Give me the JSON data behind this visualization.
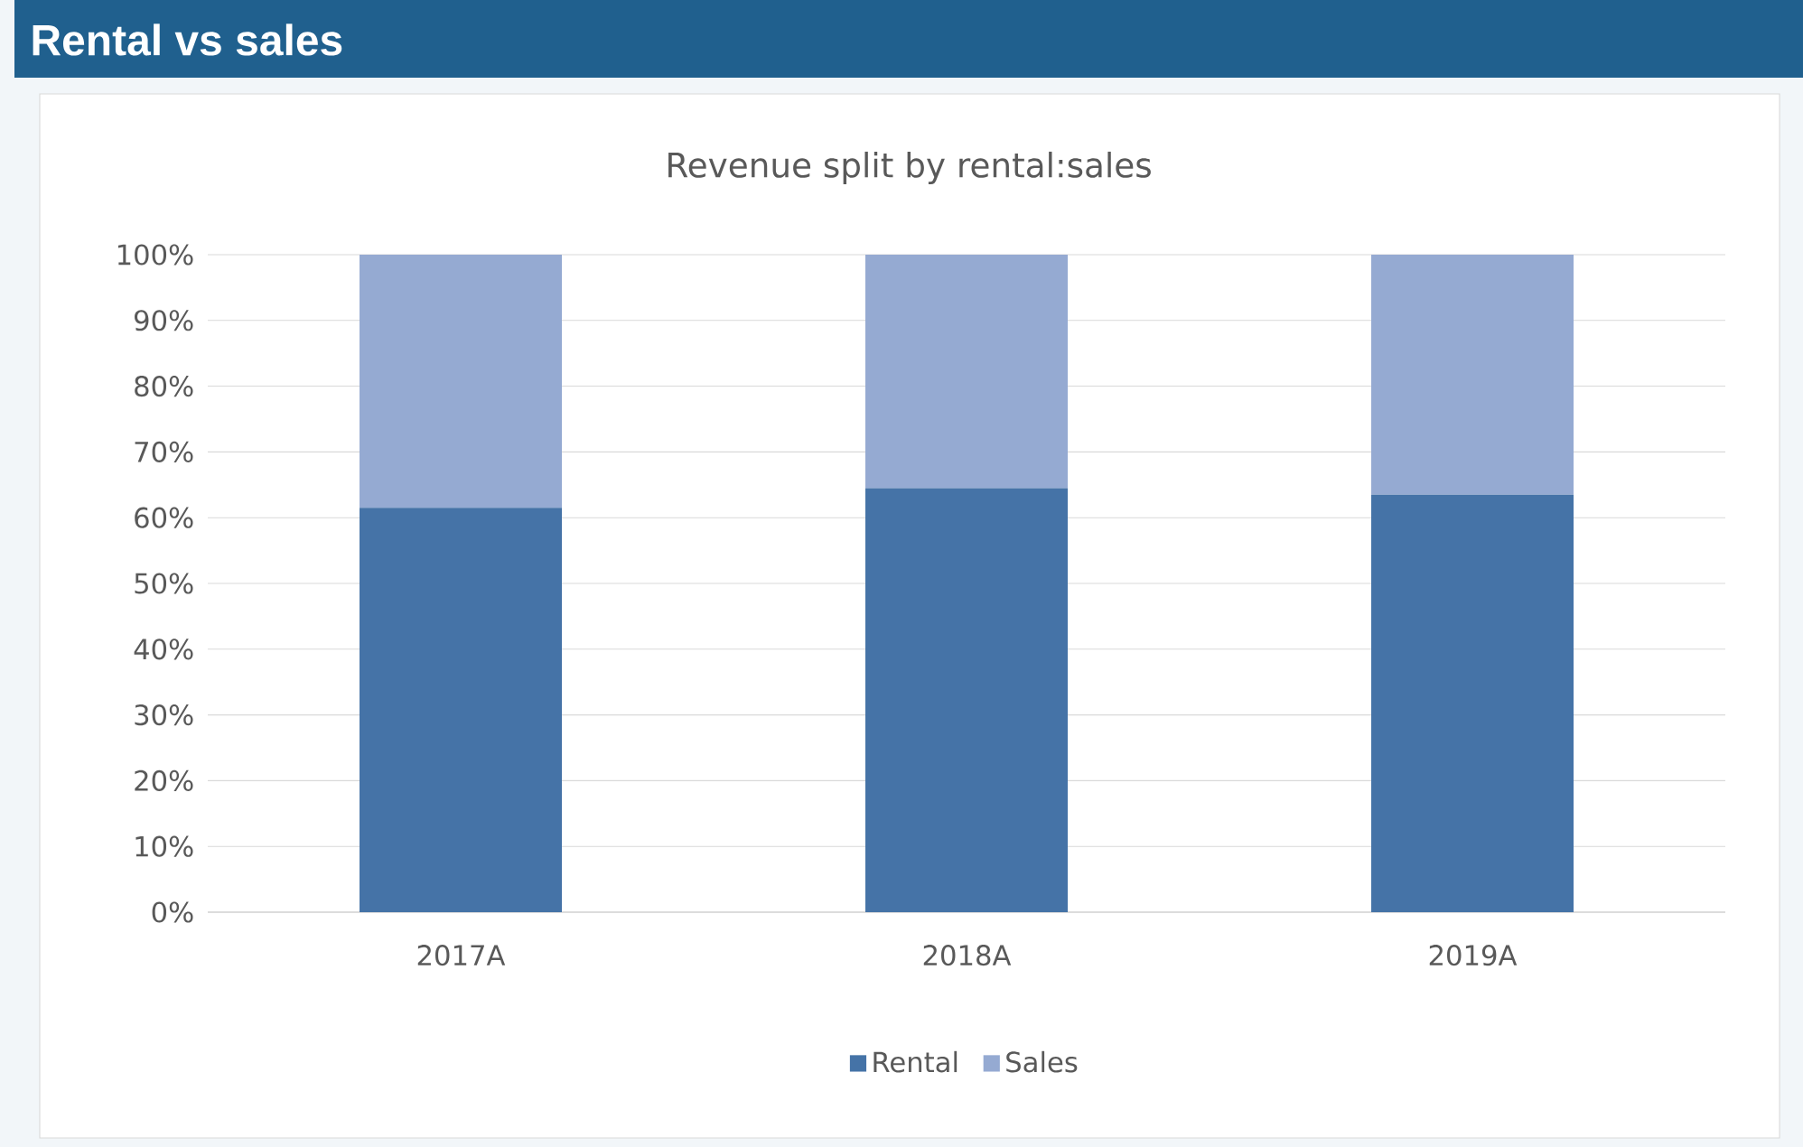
{
  "chart_data": {
    "type": "bar",
    "title": "Rental vs sales",
    "subtitle": "Revenue split by rental:sales",
    "categories": [
      "2017A",
      "2018A",
      "2019A"
    ],
    "series": [
      {
        "name": "Rental",
        "color": "#4573a7",
        "values": [
          61.5,
          64.5,
          63.5
        ]
      },
      {
        "name": "Sales",
        "color": "#95aad2",
        "values": [
          38.5,
          35.5,
          36.5
        ]
      }
    ],
    "stacked": true,
    "ylim": [
      0,
      100
    ],
    "yticks": [
      {
        "value": 0,
        "label": "0%"
      },
      {
        "value": 10,
        "label": "10%"
      },
      {
        "value": 20,
        "label": "20%"
      },
      {
        "value": 30,
        "label": "30%"
      },
      {
        "value": 40,
        "label": "40%"
      },
      {
        "value": 50,
        "label": "50%"
      },
      {
        "value": 60,
        "label": "60%"
      },
      {
        "value": 70,
        "label": "70%"
      },
      {
        "value": 80,
        "label": "80%"
      },
      {
        "value": 90,
        "label": "90%"
      },
      {
        "value": 100,
        "label": "100%"
      }
    ],
    "grid": "y",
    "legend": "bottom"
  }
}
